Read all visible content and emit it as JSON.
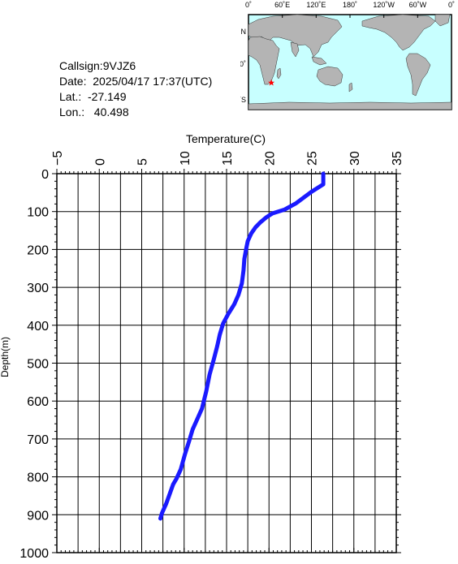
{
  "info": {
    "callsign": "Callsign:9VJZ6",
    "date": "Date:  2025/04/17 17:37(UTC)",
    "lat": "Lat.:  -27.149",
    "lon": "Lon.:   40.498"
  },
  "map": {
    "lon_labels": [
      "0˚",
      "60˚E",
      "120˚E",
      "180˚",
      "120˚W",
      "60˚W",
      "0˚"
    ],
    "lat_labels": [
      "60˚N",
      "0˚",
      "60˚S"
    ],
    "marker": {
      "lat": -27.149,
      "lon": 40.498
    },
    "colors": {
      "ocean": "#c8ffff",
      "land": "#b4b4b4",
      "marker": "#ff0000"
    }
  },
  "chart_data": {
    "type": "line",
    "title": "",
    "xlabel": "Temperature(C)",
    "ylabel": "Depth(m)",
    "xlim": [
      -5,
      35
    ],
    "ylim": [
      1000,
      0
    ],
    "x_ticks": [
      "−5",
      "0",
      "5",
      "10",
      "15",
      "20",
      "25",
      "30",
      "35"
    ],
    "y_ticks": [
      "0",
      "100",
      "200",
      "300",
      "400",
      "500",
      "600",
      "700",
      "800",
      "900",
      "1000"
    ],
    "grid": true,
    "series": [
      {
        "color": "#1a1aff",
        "points": [
          [
            26.4,
            0
          ],
          [
            26.4,
            28
          ],
          [
            25.0,
            48
          ],
          [
            23.2,
            78
          ],
          [
            21.8,
            95
          ],
          [
            20.4,
            105
          ],
          [
            19.7,
            115
          ],
          [
            19.0,
            128
          ],
          [
            18.4,
            142
          ],
          [
            17.9,
            158
          ],
          [
            17.5,
            178
          ],
          [
            17.3,
            200
          ],
          [
            17.1,
            225
          ],
          [
            17.0,
            255
          ],
          [
            16.8,
            290
          ],
          [
            16.4,
            320
          ],
          [
            15.9,
            345
          ],
          [
            15.2,
            370
          ],
          [
            14.6,
            395
          ],
          [
            14.2,
            425
          ],
          [
            13.9,
            455
          ],
          [
            13.5,
            490
          ],
          [
            13.0,
            530
          ],
          [
            12.6,
            575
          ],
          [
            12.1,
            620
          ],
          [
            11.5,
            650
          ],
          [
            11.0,
            675
          ],
          [
            10.6,
            705
          ],
          [
            10.1,
            740
          ],
          [
            9.6,
            780
          ],
          [
            9.1,
            805
          ],
          [
            8.7,
            820
          ],
          [
            8.3,
            845
          ],
          [
            7.9,
            870
          ],
          [
            7.4,
            895
          ],
          [
            7.2,
            910
          ]
        ]
      }
    ]
  }
}
